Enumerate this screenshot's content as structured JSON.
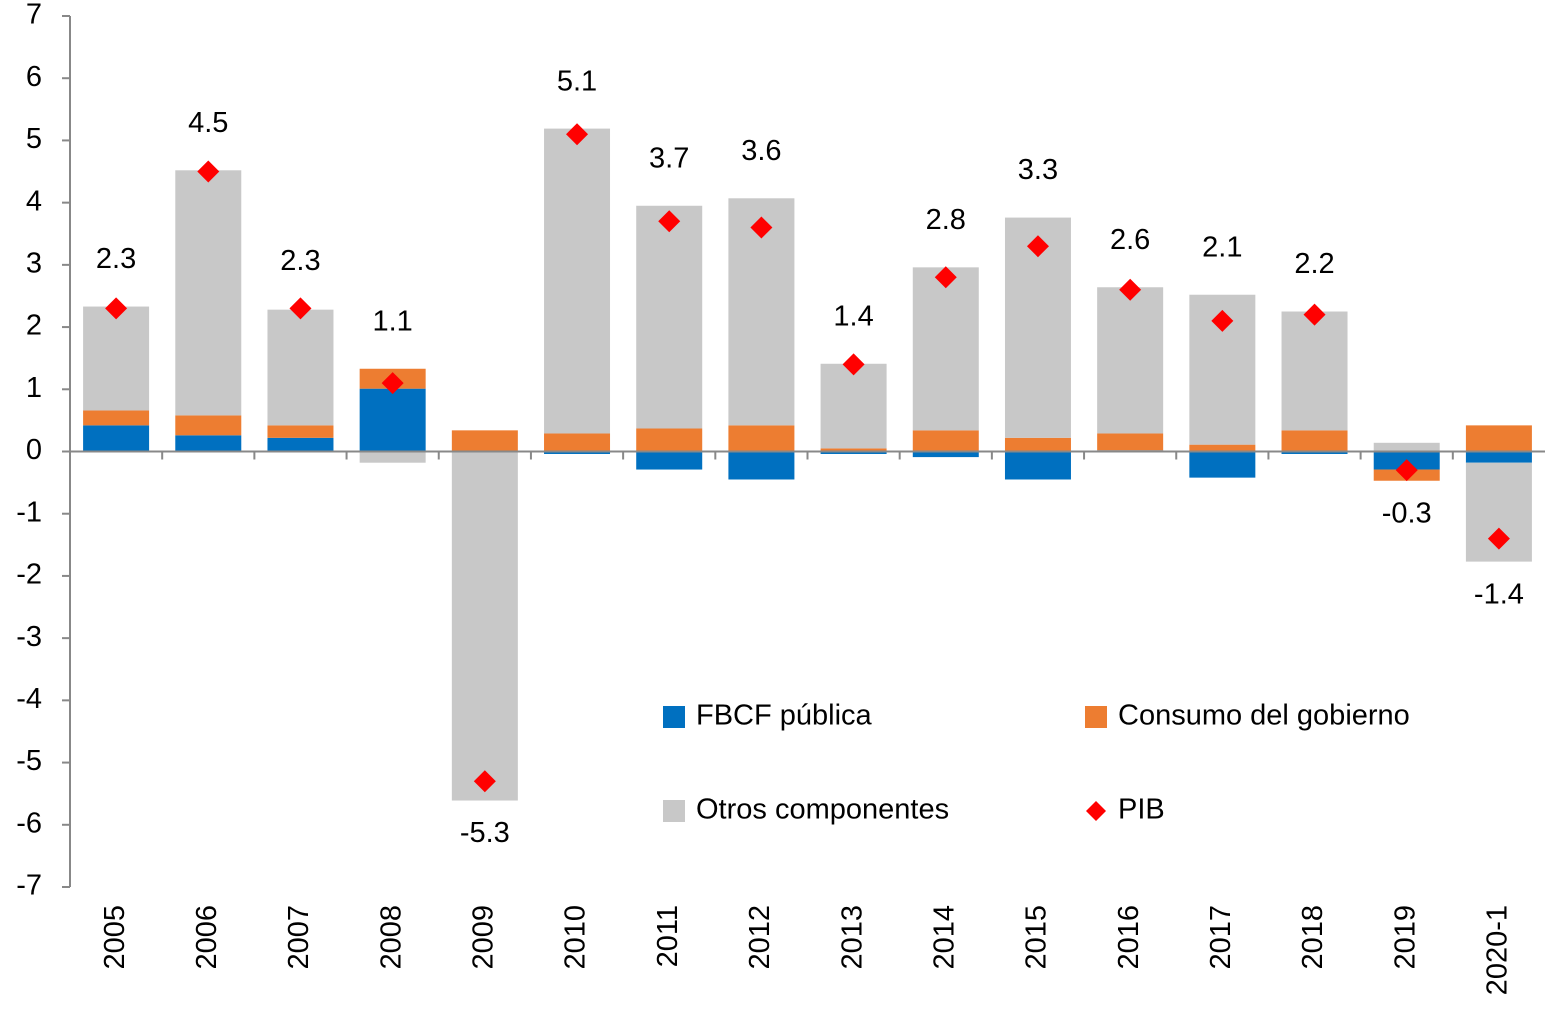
{
  "chart_data": {
    "type": "bar",
    "stacked": true,
    "categories": [
      "2005",
      "2006",
      "2007",
      "2008",
      "2009",
      "2010",
      "2011",
      "2012",
      "2013",
      "2014",
      "2015",
      "2016",
      "2017",
      "2018",
      "2019",
      "2020-1"
    ],
    "series": [
      {
        "name": "FBCF pública",
        "color": "#0070c0",
        "values": [
          0.42,
          0.26,
          0.22,
          1.01,
          0,
          -0.04,
          -0.29,
          -0.45,
          -0.04,
          -0.09,
          -0.45,
          0.02,
          -0.42,
          -0.04,
          -0.29,
          -0.18
        ]
      },
      {
        "name": "Consumo del gobierno",
        "color": "#ed7d31",
        "values": [
          0.24,
          0.32,
          0.2,
          0.32,
          0.34,
          0.29,
          0.37,
          0.42,
          0.05,
          0.34,
          0.22,
          0.27,
          0.11,
          0.34,
          -0.18,
          0.42
        ]
      },
      {
        "name": "Otros componentes",
        "color": "#c8c8c8",
        "values": [
          1.67,
          3.94,
          1.86,
          -0.18,
          -5.61,
          4.9,
          3.58,
          3.65,
          1.36,
          2.62,
          3.54,
          2.35,
          2.41,
          1.91,
          0.14,
          -1.59
        ]
      },
      {
        "name": "PIB",
        "type": "scatter",
        "color": "#ff0000",
        "values": [
          2.3,
          4.5,
          2.3,
          1.1,
          -5.3,
          5.1,
          3.7,
          3.6,
          1.4,
          2.8,
          3.3,
          2.6,
          2.1,
          2.2,
          -0.3,
          -1.4
        ]
      }
    ],
    "ylim": [
      -7,
      7
    ],
    "yticks": [
      -7,
      -6,
      -5,
      -4,
      -3,
      -2,
      -1,
      0,
      1,
      2,
      3,
      4,
      5,
      6,
      7
    ],
    "legend": "inside"
  }
}
